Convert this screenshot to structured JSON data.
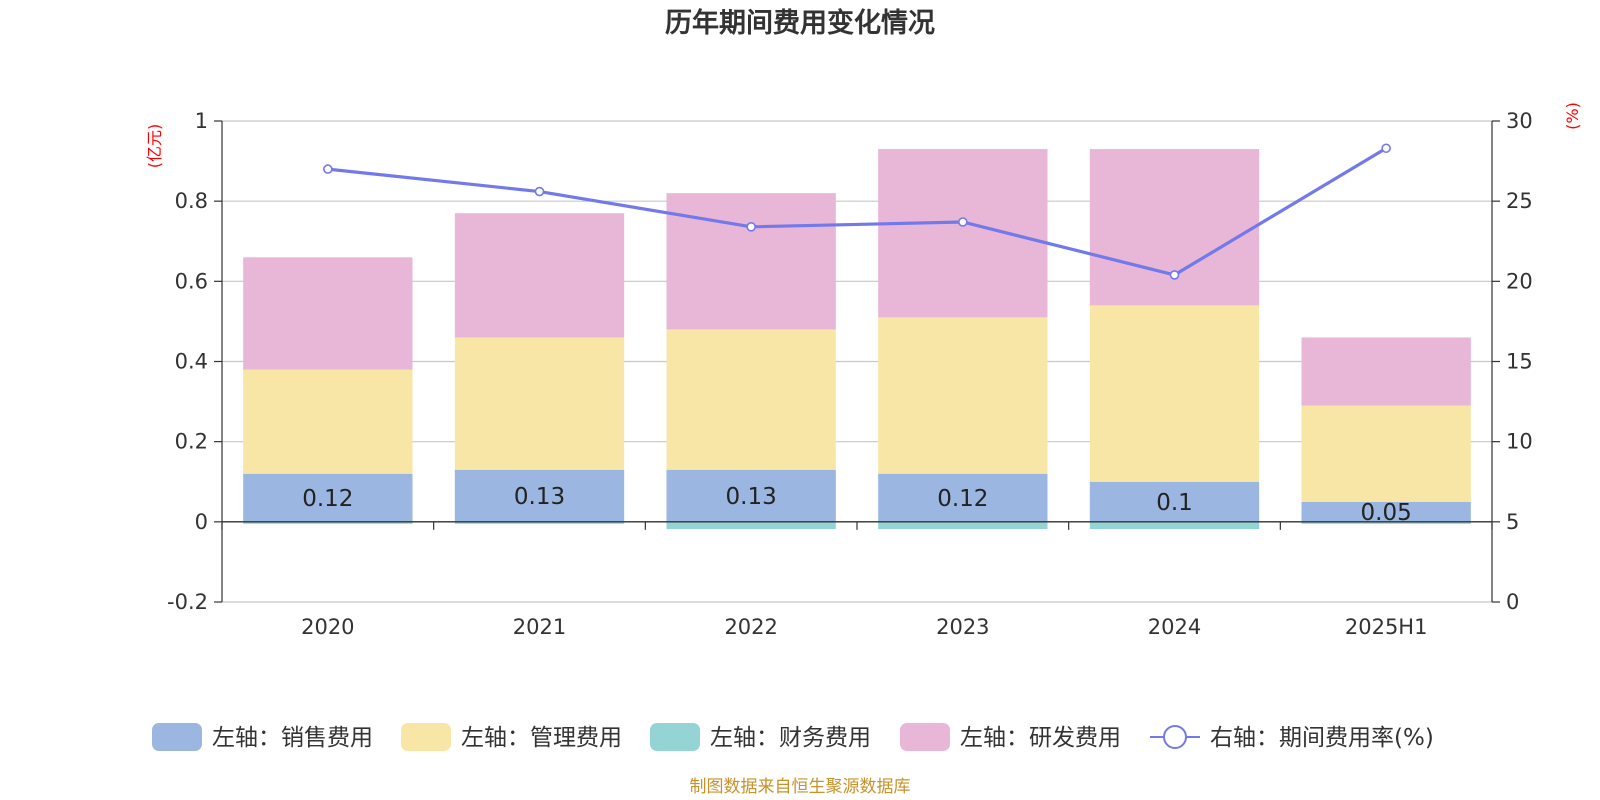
{
  "chart_data": {
    "type": "bar",
    "title": "历年期间费用变化情况",
    "categories": [
      "2020",
      "2021",
      "2022",
      "2023",
      "2024",
      "2025H1"
    ],
    "stacked": true,
    "left_axis": {
      "unit": "(亿元)",
      "ylim": [
        -0.2,
        1
      ],
      "ticks": [
        "-0.2",
        "0",
        "0.2",
        "0.4",
        "0.6",
        "0.8",
        "1"
      ]
    },
    "right_axis": {
      "unit": "(%)",
      "ylim": [
        0,
        30
      ],
      "ticks": [
        "0",
        "5",
        "10",
        "15",
        "20",
        "25",
        "30"
      ]
    },
    "series": [
      {
        "name": "左轴：销售费用",
        "type": "bar",
        "axis": "left",
        "color": "#9bb7e1",
        "values": [
          0.12,
          0.13,
          0.13,
          0.12,
          0.1,
          0.05
        ]
      },
      {
        "name": "左轴：管理费用",
        "type": "bar",
        "axis": "left",
        "color": "#f8e6a7",
        "values": [
          0.26,
          0.33,
          0.35,
          0.39,
          0.44,
          0.24
        ]
      },
      {
        "name": "左轴：财务费用",
        "type": "bar",
        "axis": "left",
        "color": "#94d4d4",
        "values": [
          -0.005,
          -0.005,
          -0.018,
          -0.018,
          -0.018,
          -0.005
        ]
      },
      {
        "name": "左轴：研发费用",
        "type": "bar",
        "axis": "left",
        "color": "#e8b7d8",
        "values": [
          0.28,
          0.31,
          0.34,
          0.42,
          0.39,
          0.17
        ]
      },
      {
        "name": "右轴：期间费用率(%)",
        "type": "line",
        "axis": "right",
        "color": "#7279ea",
        "values": [
          27.0,
          25.6,
          23.4,
          23.7,
          20.4,
          28.3
        ]
      }
    ],
    "bar_labels": [
      "0.12",
      "0.13",
      "0.13",
      "0.12",
      "0.1",
      "0.05"
    ],
    "grid": true,
    "legend_position": "bottom"
  },
  "source": "制图数据来自恒生聚源数据库"
}
